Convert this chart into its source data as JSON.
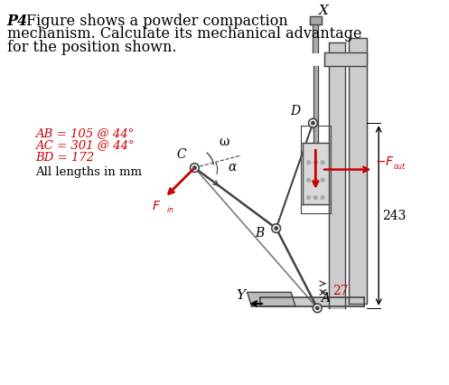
{
  "title_bold": "P4",
  "title_rest": "Figure shows a powder compaction",
  "title_line2": "mechanism. Calculate its mechanical advantage",
  "title_line3": "for the position shown.",
  "label_AB": "AB = 105 @ 44°",
  "label_AC": "AC = 301 @ 44°",
  "label_BD": "BD = 172",
  "label_lengths": "All lengths in mm",
  "label_X": "X",
  "label_Y": "Y",
  "label_C": "C",
  "label_D": "D",
  "label_B": "B",
  "label_A": "A",
  "label_omega": "ω",
  "label_alpha": "α",
  "label_243": "243",
  "label_27": "27",
  "red_color": "#CC0000",
  "line_color": "#555555",
  "bg_color": "#FFFFFF",
  "lc": "#444444",
  "gray_fill": "#cccccc",
  "dark_gray": "#888888"
}
